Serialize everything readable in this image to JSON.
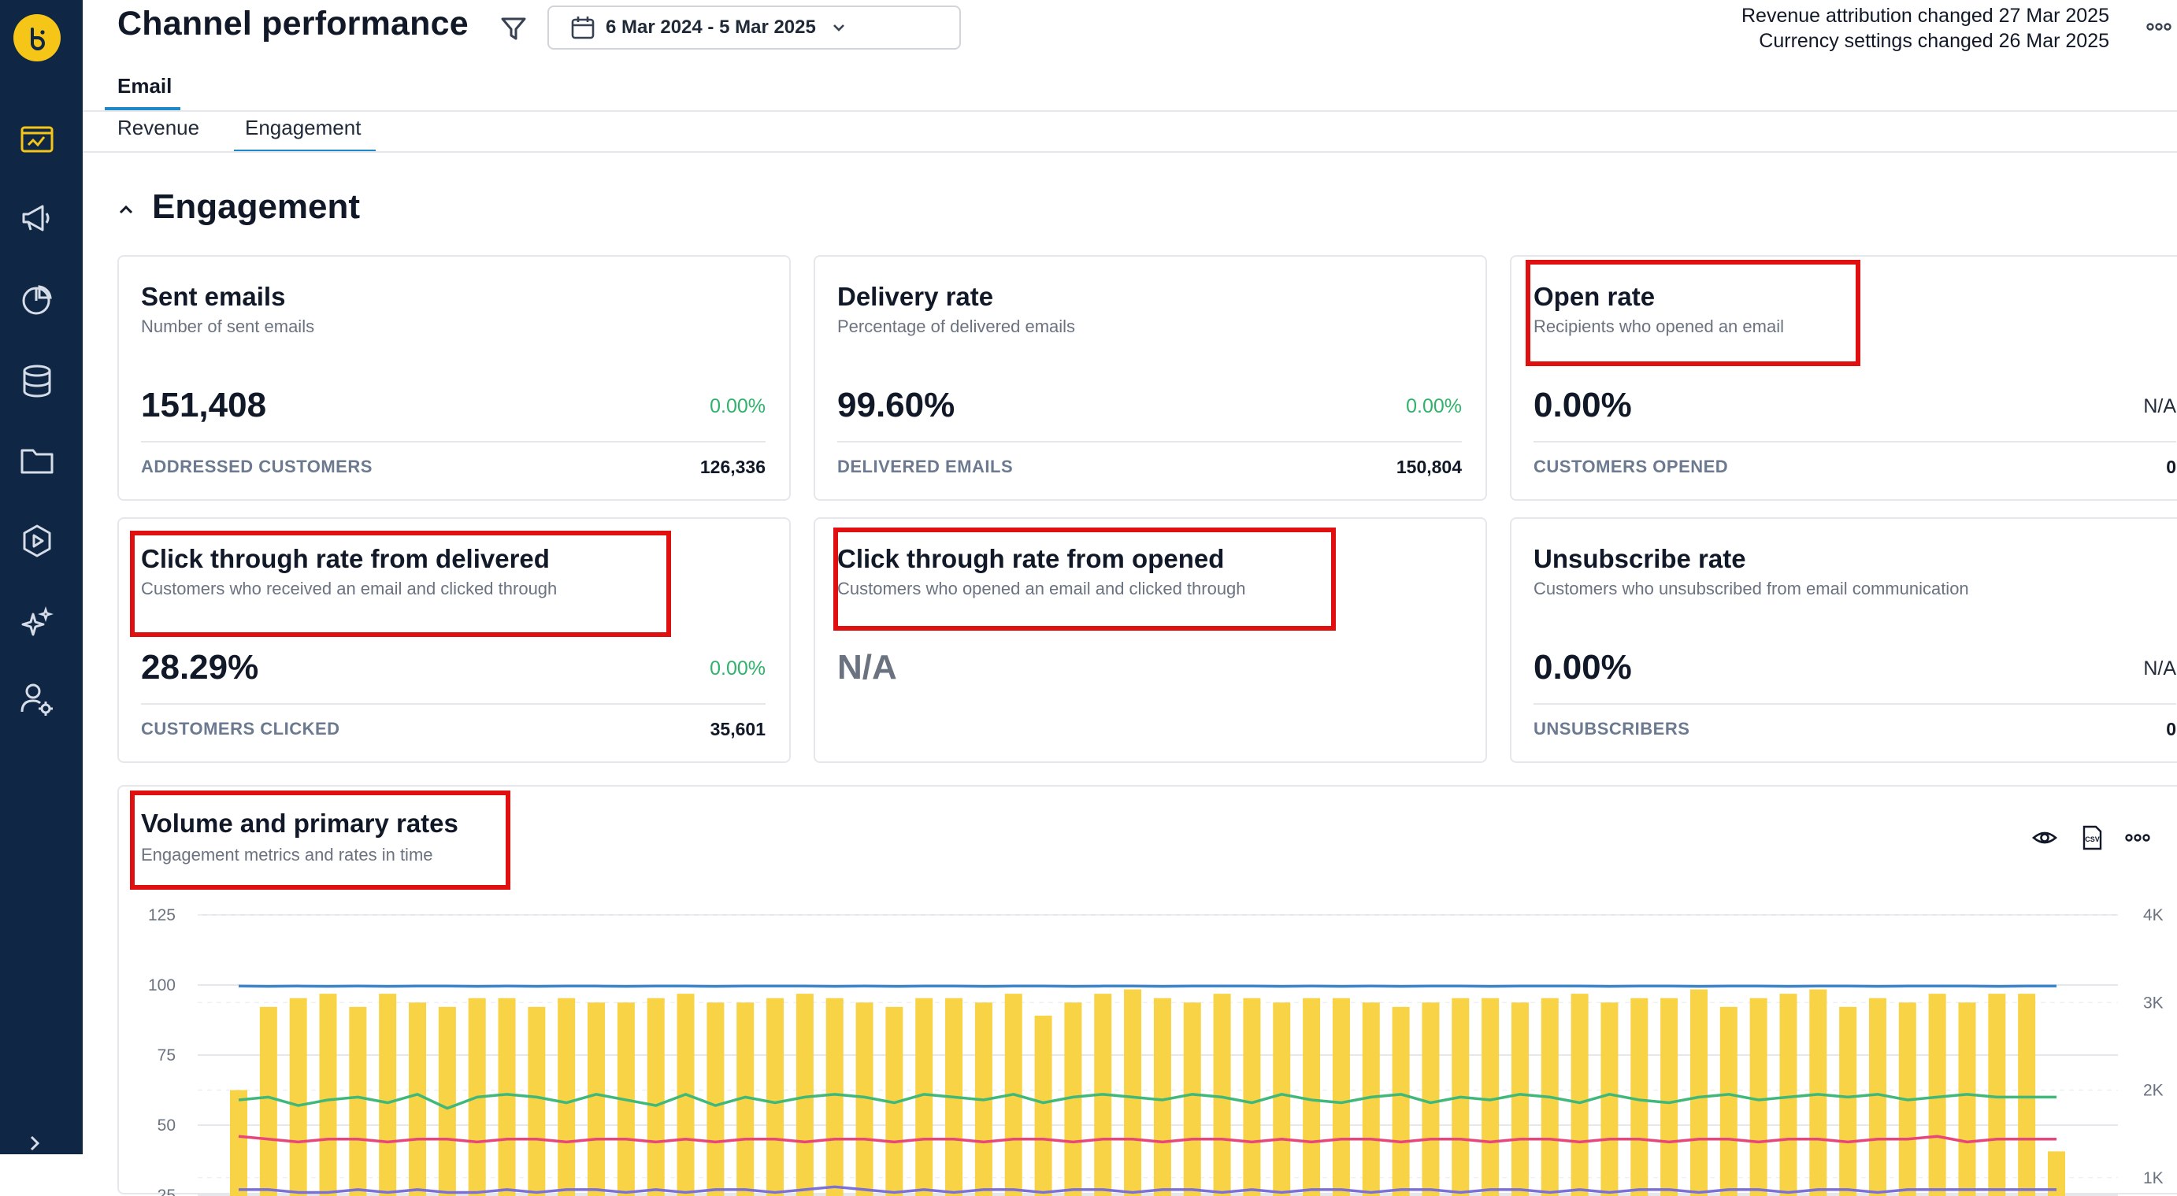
{
  "app": {
    "page_title": "Channel performance",
    "date_range": "6 Mar 2024 - 5 Mar 2025",
    "changes": [
      "Revenue attribution changed 27 Mar 2025",
      "Currency settings changed 26 Mar 2025"
    ]
  },
  "nav": {
    "icons": [
      "dashboard-icon",
      "megaphone-icon",
      "pie-chart-icon",
      "database-icon",
      "folder-icon",
      "play-icon",
      "sparkle-icon",
      "user-settings-icon"
    ]
  },
  "tabs": {
    "channel": "Email",
    "sub": [
      "Revenue",
      "Engagement"
    ],
    "active_sub": "Engagement"
  },
  "section": {
    "title": "Engagement"
  },
  "cards": [
    {
      "title": "Sent emails",
      "subtitle": "Number of sent emails",
      "value": "151,408",
      "change": "0.00%",
      "foot_label": "ADDRESSED CUSTOMERS",
      "foot_value": "126,336"
    },
    {
      "title": "Delivery rate",
      "subtitle": "Percentage of delivered emails",
      "value": "99.60%",
      "change": "0.00%",
      "foot_label": "DELIVERED EMAILS",
      "foot_value": "150,804"
    },
    {
      "title": "Open rate",
      "subtitle": "Recipients who opened an email",
      "value": "0.00%",
      "change": "N/A",
      "foot_label": "CUSTOMERS OPENED",
      "foot_value": "0"
    },
    {
      "title": "Click through rate from delivered",
      "subtitle": "Customers who received an email and clicked through",
      "value": "28.29%",
      "change": "0.00%",
      "foot_label": "CUSTOMERS CLICKED",
      "foot_value": "35,601"
    },
    {
      "title": "Click through rate from opened",
      "subtitle": "Customers who opened an email and clicked through",
      "value": "N/A"
    },
    {
      "title": "Unsubscribe rate",
      "subtitle": "Customers who unsubscribed from email communication",
      "value": "0.00%",
      "change": "N/A",
      "foot_label": "UNSUBSCRIBERS",
      "foot_value": "0"
    }
  ],
  "colors": {
    "sidebar": "#0f2744",
    "accent": "#1e88c8",
    "positive": "#2fb36b",
    "bar": "#f7d345",
    "highlight": "#e01010"
  },
  "chart_data": {
    "type": "bar",
    "title": "Volume and primary rates",
    "subtitle": "Engagement metrics and rates in time",
    "ylim_left": [
      0,
      125
    ],
    "left_ticks": [
      "125",
      "100",
      "75",
      "50",
      "25"
    ],
    "ylim_right": [
      0,
      4000
    ],
    "right_ticks": [
      "4K",
      "3K",
      "2K",
      "1K"
    ],
    "grid": true,
    "series": [
      {
        "axis": "right",
        "type": "bar",
        "color": "#f7d345",
        "values": [
          2000,
          2950,
          3050,
          3100,
          2950,
          3100,
          3000,
          2950,
          3050,
          3050,
          2950,
          3050,
          3000,
          3000,
          3050,
          3100,
          3000,
          3000,
          3050,
          3100,
          3050,
          3000,
          2950,
          3050,
          3050,
          3000,
          3100,
          2850,
          3000,
          3100,
          3150,
          3050,
          3000,
          3100,
          3050,
          3000,
          3050,
          3050,
          3000,
          2950,
          3000,
          3050,
          3050,
          3000,
          3050,
          3100,
          3000,
          3050,
          3050,
          3150,
          2950,
          3050,
          3100,
          3150,
          2950,
          3050,
          3000,
          3100,
          3000,
          3100,
          3100,
          1300
        ]
      },
      {
        "axis": "left",
        "type": "line",
        "color": "#3f86c8",
        "values": [
          99.6,
          99.5,
          99.6,
          99.5,
          99.6,
          99.5,
          99.6,
          99.6,
          99.5,
          99.6,
          99.5,
          99.6,
          99.6,
          99.5,
          99.6,
          99.6,
          99.5,
          99.6,
          99.6,
          99.6,
          99.5,
          99.6,
          99.5,
          99.6,
          99.6,
          99.5,
          99.6,
          99.6,
          99.5,
          99.6,
          99.6,
          99.5,
          99.6,
          99.6,
          99.6,
          99.5,
          99.6,
          99.5,
          99.6,
          99.5,
          99.6,
          99.6,
          99.5,
          99.6,
          99.6,
          99.6,
          99.5,
          99.6,
          99.6,
          99.5,
          99.6,
          99.6,
          99.5,
          99.6,
          99.6,
          99.5,
          99.6,
          99.6,
          99.6,
          99.5,
          99.6,
          99.6
        ]
      },
      {
        "axis": "left",
        "type": "line",
        "color": "#3fb87a",
        "values": [
          59,
          60,
          57,
          59,
          60,
          58,
          61,
          56,
          60,
          61,
          60,
          58,
          61,
          59,
          57,
          61,
          57,
          60,
          58,
          60,
          61,
          60,
          58,
          61,
          60,
          59,
          61,
          58,
          60,
          61,
          60,
          59,
          61,
          60,
          58,
          61,
          59,
          58,
          60,
          61,
          58,
          60,
          59,
          61,
          60,
          58,
          61,
          59,
          58,
          60,
          61,
          59,
          60,
          61,
          60,
          61,
          59,
          60,
          61,
          60,
          60,
          60
        ]
      },
      {
        "axis": "left",
        "type": "line",
        "color": "#e8467a",
        "values": [
          46,
          45,
          44,
          45,
          45,
          44,
          45,
          45,
          44,
          45,
          45,
          44,
          45,
          45,
          44,
          45,
          44,
          45,
          45,
          44,
          45,
          45,
          44,
          45,
          45,
          44,
          45,
          45,
          44,
          45,
          45,
          44,
          45,
          45,
          44,
          45,
          44,
          45,
          45,
          44,
          45,
          45,
          44,
          45,
          45,
          44,
          45,
          45,
          44,
          45,
          45,
          44,
          45,
          45,
          44,
          45,
          45,
          46,
          44,
          45,
          45,
          45
        ]
      },
      {
        "axis": "left",
        "type": "line",
        "color": "#7b6fd8",
        "values": [
          27,
          27,
          26,
          26,
          27,
          26,
          27,
          26,
          26,
          27,
          26,
          27,
          27,
          26,
          27,
          26,
          27,
          27,
          26,
          27,
          28,
          27,
          26,
          27,
          26,
          27,
          27,
          26,
          27,
          27,
          26,
          27,
          27,
          26,
          27,
          26,
          27,
          27,
          26,
          27,
          27,
          26,
          27,
          27,
          26,
          27,
          26,
          27,
          27,
          26,
          27,
          27,
          26,
          27,
          27,
          26,
          27,
          27,
          27,
          27,
          27,
          27
        ]
      }
    ]
  }
}
